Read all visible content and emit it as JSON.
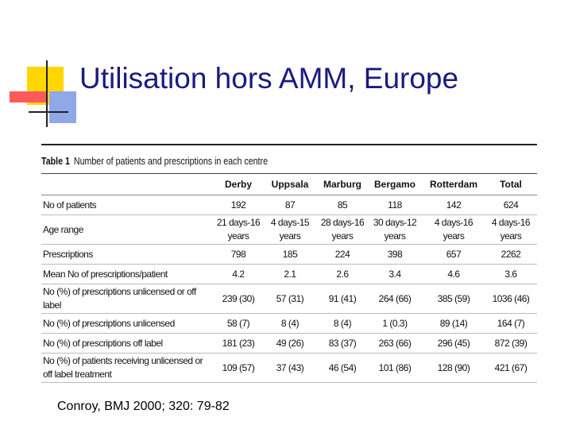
{
  "title": "Utilisation hors AMM, Europe",
  "table": {
    "caption_label": "Table 1",
    "caption": "Number of patients and prescriptions in each centre",
    "header": [
      "",
      "Derby",
      "Uppsala",
      "Marburg",
      "Bergamo",
      "Rotterdam",
      "Total"
    ],
    "rows": [
      [
        "No of patients",
        "192",
        "87",
        "85",
        "118",
        "142",
        "624"
      ],
      [
        "Age range",
        "21 days-16 years",
        "4 days-15 years",
        "28 days-16 years",
        "30 days-12 years",
        "4 days-16 years",
        "4 days-16 years"
      ],
      [
        "Prescriptions",
        "798",
        "185",
        "224",
        "398",
        "657",
        "2262"
      ],
      [
        "Mean No of prescriptions/patient",
        "4.2",
        "2.1",
        "2.6",
        "3.4",
        "4.6",
        "3.6"
      ],
      [
        "No (%) of prescriptions unlicensed or off label",
        "239 (30)",
        "57 (31)",
        "91 (41)",
        "264 (66)",
        "385 (59)",
        "1036 (46)"
      ],
      [
        "No (%) of prescriptions unlicensed",
        "58 (7)",
        "8 (4)",
        "8 (4)",
        "1 (0.3)",
        "89 (14)",
        "164 (7)"
      ],
      [
        "No (%) of prescriptions off label",
        "181 (23)",
        "49 (26)",
        "83 (37)",
        "263 (66)",
        "296 (45)",
        "872 (39)"
      ],
      [
        "No (%) of patients receiving unlicensed or off label treatment",
        "109 (57)",
        "37 (43)",
        "46 (54)",
        "101 (86)",
        "128 (90)",
        "421 (67)"
      ]
    ]
  },
  "source": "Conroy, BMJ 2000; 320: 79-82"
}
